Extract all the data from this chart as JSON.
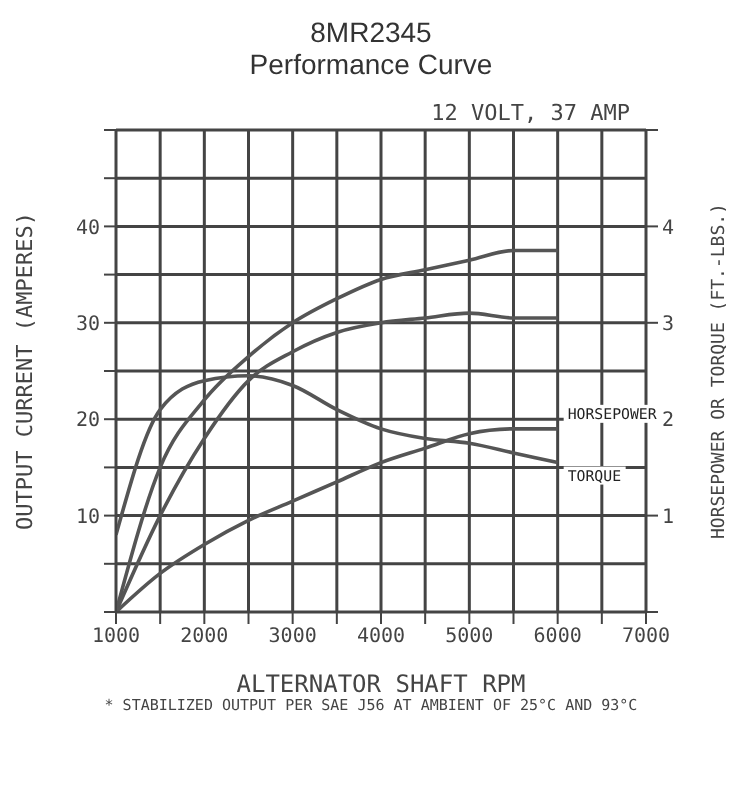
{
  "chart_data": {
    "type": "line",
    "title": "8MR2345\nPerformance Curve",
    "subtitle": "12 VOLT, 37 AMP",
    "xlabel": "ALTERNATOR SHAFT RPM",
    "ylabel": "OUTPUT CURRENT (AMPERES)",
    "y2label": "HORSEPOWER OR TORQUE (FT.-LBS.)",
    "annotations": [
      "* STABILIZED OUTPUT PER SAE J56 AT AMBIENT OF 25°C AND 93°C"
    ],
    "x": [
      1000,
      1500,
      2000,
      2500,
      3000,
      3500,
      4000,
      4500,
      5000,
      5500,
      6000
    ],
    "series": [
      {
        "color": "#555555",
        "values": [
          0,
          15,
          22,
          26.5,
          30,
          32.5,
          34.5,
          35.5,
          36.5,
          37.5,
          37.5
        ]
      },
      {
        "color": "#555555",
        "values": [
          0,
          10,
          18,
          24,
          27,
          29,
          30,
          30.5,
          31,
          30.5,
          30.5
        ]
      },
      {
        "name": "TORQUE",
        "axis": "y2",
        "color": "#555555",
        "values": [
          0.8,
          2.1,
          2.4,
          2.45,
          2.35,
          2.1,
          1.9,
          1.8,
          1.75,
          1.65,
          1.55
        ]
      },
      {
        "name": "HORSEPOWER",
        "axis": "y2",
        "color": "#555555",
        "values": [
          0,
          0.4,
          0.7,
          0.95,
          1.15,
          1.35,
          1.55,
          1.7,
          1.85,
          1.9,
          1.9
        ]
      }
    ],
    "xlim": [
      1000,
      7000
    ],
    "xticks": [
      1000,
      {
        "value": 1500,
        "label": null
      },
      2000,
      {
        "value": 2500,
        "label": null
      },
      3000,
      {
        "value": 3500,
        "label": null
      },
      4000,
      {
        "value": 4500,
        "label": null
      },
      5000,
      {
        "value": 5500,
        "label": null
      },
      6000,
      {
        "value": 6500,
        "label": null
      },
      7000
    ],
    "ylim": [
      0,
      50
    ],
    "yticks": [
      {
        "value": 0,
        "label": null
      },
      {
        "value": 5,
        "label": null
      },
      10,
      {
        "value": 15,
        "label": null
      },
      20,
      {
        "value": 25,
        "label": null
      },
      30,
      {
        "value": 35,
        "label": null
      },
      40,
      {
        "value": 45,
        "label": null
      },
      {
        "value": 50,
        "label": null
      }
    ],
    "y2lim": [
      0,
      5
    ],
    "y2ticks": [
      {
        "value": 0,
        "label": null
      },
      1,
      2,
      3,
      4,
      {
        "value": 5,
        "label": null
      }
    ],
    "grid": true,
    "marker": "none",
    "line_style": "solid"
  }
}
